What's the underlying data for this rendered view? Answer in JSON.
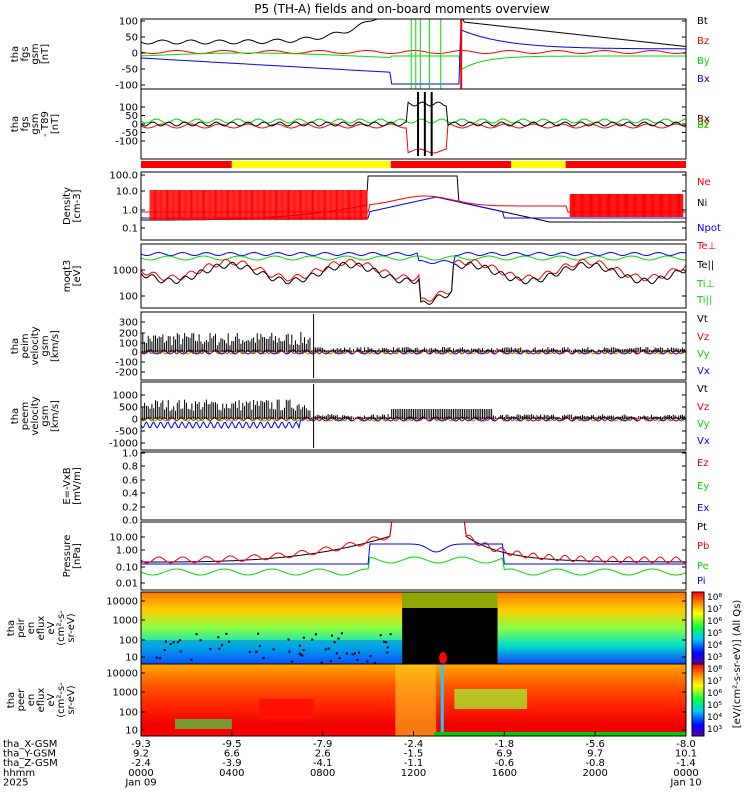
{
  "title": "P5 (TH-A) fields and on-board moments overview",
  "colors": {
    "black": "#000000",
    "red": "#ff0000",
    "green": "#00dd00",
    "blue": "#0000ff",
    "yellow": "#ffff00"
  },
  "chart_data": [
    {
      "id": "fgs",
      "type": "line",
      "ylabel_lines": [
        "tha",
        "fgs",
        "gsm",
        "[nT]"
      ],
      "ylim": [
        -100,
        100
      ],
      "yticks": [
        "100",
        "50",
        "0",
        "-50",
        "-100"
      ],
      "legend": [
        {
          "name": "Bt",
          "color": "#000000"
        },
        {
          "name": "Bz",
          "color": "#ff0000"
        },
        {
          "name": "By",
          "color": "#00dd00"
        },
        {
          "name": "Bx",
          "color": "#0000ff"
        }
      ]
    },
    {
      "id": "fgs_dB",
      "type": "line",
      "ylabel_lines": [
        "tha",
        "fgs",
        "gsm",
        "- T89",
        "[nT]"
      ],
      "ylim": [
        -125,
        125
      ],
      "yticks": [
        "100",
        "50",
        "0",
        "-50",
        "-100"
      ],
      "legend": [
        {
          "name": "Bx",
          "color": "#000000"
        },
        {
          "name": "By",
          "color": "#ff0000"
        },
        {
          "name": "Bz",
          "color": "#00dd00"
        }
      ]
    },
    {
      "id": "mode_bar",
      "type": "bar",
      "segments": [
        {
          "from": 0,
          "to": 4,
          "color": "#ff0000"
        },
        {
          "from": 4,
          "to": 11,
          "color": "#ffff00"
        },
        {
          "from": 11,
          "to": 16.3,
          "color": "#ff0000"
        },
        {
          "from": 16.3,
          "to": 18.7,
          "color": "#ffff00"
        },
        {
          "from": 18.7,
          "to": 24,
          "color": "#ff0000"
        }
      ]
    },
    {
      "id": "density",
      "type": "line",
      "ylabel_lines": [
        "Density",
        "[cm-3]"
      ],
      "scale": "log",
      "yticks": [
        "100.0",
        "10.0",
        "1.0",
        "0.1"
      ],
      "legend": [
        {
          "name": "Ne",
          "color": "#ff0000"
        },
        {
          "name": "Ni",
          "color": "#000000"
        },
        {
          "name": "Npot",
          "color": "#0000ff"
        }
      ]
    },
    {
      "id": "temp",
      "type": "line",
      "ylabel_lines": [
        "moqt3",
        "[eV]"
      ],
      "scale": "log",
      "yticks": [
        "1000",
        "100"
      ],
      "legend": [
        {
          "name": "Te⊥",
          "color": "#ff0000"
        },
        {
          "name": "Te||",
          "color": "#000000"
        },
        {
          "name": "Ti⊥",
          "color": "#00dd00"
        },
        {
          "name": "Ti||",
          "color": "#00dd00"
        }
      ]
    },
    {
      "id": "peim",
      "type": "line",
      "ylabel_lines": [
        "tha",
        "peim",
        "velocity",
        "gsm",
        "[km/s]"
      ],
      "ylim": [
        -300,
        350
      ],
      "yticks": [
        "300",
        "200",
        "100",
        "0",
        "-100",
        "-200"
      ],
      "legend": [
        {
          "name": "Vt",
          "color": "#000000"
        },
        {
          "name": "Vz",
          "color": "#ff0000"
        },
        {
          "name": "Vy",
          "color": "#00dd00"
        },
        {
          "name": "Vx",
          "color": "#0000ff"
        }
      ]
    },
    {
      "id": "peem",
      "type": "line",
      "ylabel_lines": [
        "tha",
        "peem",
        "velocity",
        "gsm",
        "[km/s]"
      ],
      "ylim": [
        -1300,
        1500
      ],
      "yticks": [
        "1000",
        "500",
        "0",
        "-500",
        "-1000"
      ],
      "legend": [
        {
          "name": "Vt",
          "color": "#000000"
        },
        {
          "name": "Vz",
          "color": "#ff0000"
        },
        {
          "name": "Vy",
          "color": "#00dd00"
        },
        {
          "name": "Vx",
          "color": "#0000ff"
        }
      ]
    },
    {
      "id": "efield",
      "type": "line",
      "ylabel_lines": [
        "E=-VxB",
        "[mV/m]"
      ],
      "ylim": [
        0,
        1
      ],
      "yticks": [
        "1.0",
        "0.8",
        "0.6",
        "0.4",
        "0.2",
        "0.0"
      ],
      "legend": [
        {
          "name": "Ez",
          "color": "#ff0000"
        },
        {
          "name": "Ey",
          "color": "#00dd00"
        },
        {
          "name": "Ex",
          "color": "#0000ff"
        }
      ]
    },
    {
      "id": "pressure",
      "type": "line",
      "ylabel_lines": [
        "Pressure",
        "[nPa]"
      ],
      "scale": "log",
      "yticks": [
        "10.00",
        "1.00",
        "0.10",
        "0.01"
      ],
      "legend": [
        {
          "name": "Pt",
          "color": "#000000"
        },
        {
          "name": "Pb",
          "color": "#ff0000"
        },
        {
          "name": "Pe",
          "color": "#00dd00"
        },
        {
          "name": "Pi",
          "color": "#0000ff"
        }
      ]
    },
    {
      "id": "peir_spec",
      "type": "heatmap",
      "ylabel_lines": [
        "tha",
        "peir",
        "en",
        "eflux",
        "eV",
        "(cm²-s-",
        "sr-eV)"
      ],
      "yticks": [
        "10000",
        "1000",
        "100",
        "10"
      ]
    },
    {
      "id": "peer_spec",
      "type": "heatmap",
      "ylabel_lines": [
        "tha",
        "peer",
        "en",
        "eflux",
        "eV",
        "(cm²-s-",
        "sr-eV)"
      ],
      "yticks": [
        "10000",
        "1000",
        "100",
        "10"
      ]
    }
  ],
  "colorbar": {
    "label": "[eV/(cm²-s-sr-eV)] (All Qs)",
    "upper_ticks": [
      "10⁸",
      "10⁷",
      "10⁶",
      "10⁵",
      "10⁴",
      "10³"
    ],
    "lower_ticks": [
      "10⁸",
      "10⁷",
      "10⁶",
      "10⁵",
      "10⁴",
      "10³"
    ]
  },
  "xaxis": {
    "row_labels": [
      "tha_X-GSM",
      "tha_Y-GSM",
      "tha_Z-GSM",
      "hhmm",
      "2025"
    ],
    "ticks": [
      {
        "hour": 0,
        "x": "-9.3",
        "y": "9.2",
        "z": "-2.4",
        "hhmm": "0000",
        "date": "Jan 09"
      },
      {
        "hour": 4,
        "x": "-9.5",
        "y": "6.6",
        "z": "-3.9",
        "hhmm": "0400",
        "date": ""
      },
      {
        "hour": 8,
        "x": "-7.9",
        "y": "2.6",
        "z": "-4.1",
        "hhmm": "0800",
        "date": ""
      },
      {
        "hour": 12,
        "x": "-2.4",
        "y": "-1.5",
        "z": "-1.1",
        "hhmm": "1200",
        "date": ""
      },
      {
        "hour": 16,
        "x": "-1.8",
        "y": "6.9",
        "z": "-0.6",
        "hhmm": "1600",
        "date": ""
      },
      {
        "hour": 20,
        "x": "-5.6",
        "y": "9.7",
        "z": "-0.8",
        "hhmm": "2000",
        "date": ""
      },
      {
        "hour": 24,
        "x": "-8.0",
        "y": "10.1",
        "z": "-1.4",
        "hhmm": "0000",
        "date": "Jan 10"
      }
    ]
  }
}
